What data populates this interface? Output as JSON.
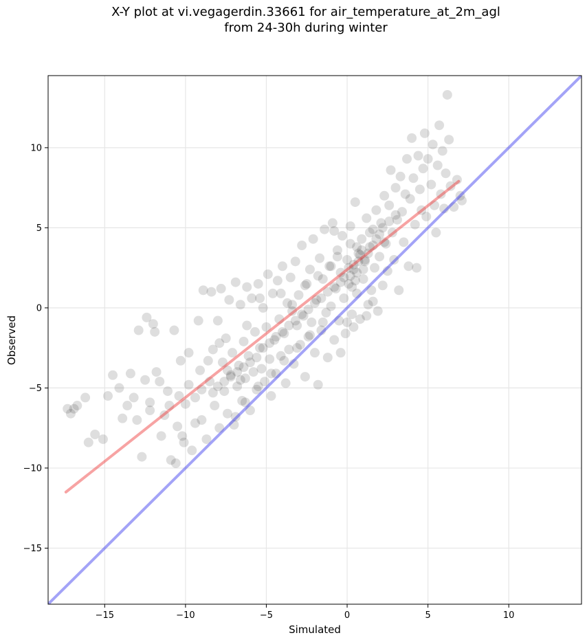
{
  "chart_data": {
    "type": "scatter",
    "title": "X-Y plot at vi.vegagerdin.33661 for air_temperature_at_2m_agl",
    "subtitle": "from 24-30h during winter",
    "xlabel": "Simulated",
    "ylabel": "Observed",
    "xlim": [
      -18.5,
      14.5
    ],
    "ylim": [
      -18.5,
      14.5
    ],
    "xticks": [
      -15,
      -10,
      -5,
      0,
      5,
      10
    ],
    "yticks": [
      -15,
      -10,
      -5,
      0,
      5,
      10
    ],
    "xtick_labels": [
      "−15",
      "−10",
      "−5",
      "0",
      "5",
      "10"
    ],
    "ytick_labels": [
      "−15",
      "−10",
      "−5",
      "0",
      "5",
      "10"
    ],
    "grid": true,
    "point_color": "#000000",
    "regression_line": {
      "x": [
        -17.4,
        6.9
      ],
      "y": [
        -11.5,
        7.9
      ],
      "color": "#ee3333"
    },
    "identity_line": {
      "x": [
        -18.5,
        14.5
      ],
      "y": [
        -18.5,
        14.5
      ],
      "color": "#3333ee"
    },
    "points": [
      [
        -17.3,
        -6.3
      ],
      [
        -17.1,
        -6.6
      ],
      [
        -16.9,
        -6.3
      ],
      [
        -16.7,
        -6.1
      ],
      [
        -16.2,
        -5.6
      ],
      [
        -16.0,
        -8.4
      ],
      [
        -15.6,
        -7.9
      ],
      [
        -15.1,
        -8.2
      ],
      [
        -14.8,
        -5.5
      ],
      [
        -14.5,
        -4.2
      ],
      [
        -14.1,
        -5.0
      ],
      [
        -13.9,
        -6.9
      ],
      [
        -13.6,
        -6.1
      ],
      [
        -13.4,
        -4.1
      ],
      [
        -13.2,
        -5.6
      ],
      [
        -13.0,
        -7.0
      ],
      [
        -12.9,
        -1.4
      ],
      [
        -12.7,
        -9.3
      ],
      [
        -12.5,
        -4.5
      ],
      [
        -12.4,
        -0.6
      ],
      [
        -12.2,
        -6.4
      ],
      [
        -12.0,
        -1.0
      ],
      [
        -11.9,
        -1.5
      ],
      [
        -11.8,
        -4.0
      ],
      [
        -11.5,
        -8.0
      ],
      [
        -11.3,
        -6.7
      ],
      [
        -11.1,
        -5.2
      ],
      [
        -10.9,
        -9.5
      ],
      [
        -10.7,
        -1.4
      ],
      [
        -10.6,
        -9.7
      ],
      [
        -10.5,
        -7.4
      ],
      [
        -10.3,
        -3.3
      ],
      [
        -10.1,
        -8.4
      ],
      [
        -10.0,
        -6.0
      ],
      [
        -9.8,
        -2.8
      ],
      [
        -9.6,
        -8.9
      ],
      [
        -9.4,
        -5.6
      ],
      [
        -9.2,
        -0.8
      ],
      [
        -9.1,
        -3.9
      ],
      [
        -9.0,
        -7.0
      ],
      [
        -8.9,
        1.1
      ],
      [
        -8.7,
        -8.2
      ],
      [
        -8.5,
        -4.6
      ],
      [
        -8.4,
        1.0
      ],
      [
        -8.3,
        -2.6
      ],
      [
        -8.2,
        -6.1
      ],
      [
        -8.0,
        -0.8
      ],
      [
        -7.9,
        -7.5
      ],
      [
        -7.8,
        1.2
      ],
      [
        -7.7,
        -3.4
      ],
      [
        -7.6,
        -5.2
      ],
      [
        -7.5,
        -1.9
      ],
      [
        -7.4,
        -6.6
      ],
      [
        -7.3,
        0.5
      ],
      [
        -7.2,
        -4.2
      ],
      [
        -7.1,
        -2.8
      ],
      [
        -7.0,
        -7.3
      ],
      [
        -6.9,
        1.6
      ],
      [
        -6.8,
        -4.9
      ],
      [
        -6.7,
        -3.6
      ],
      [
        -6.6,
        0.2
      ],
      [
        -6.5,
        -5.8
      ],
      [
        -6.4,
        -2.1
      ],
      [
        -6.3,
        -4.4
      ],
      [
        -6.2,
        1.3
      ],
      [
        -6.1,
        -3.0
      ],
      [
        -6.0,
        -6.4
      ],
      [
        -5.9,
        0.6
      ],
      [
        -5.8,
        -4.0
      ],
      [
        -5.7,
        -1.5
      ],
      [
        -5.6,
        -5.1
      ],
      [
        -5.5,
        1.5
      ],
      [
        -5.4,
        -2.5
      ],
      [
        -5.3,
        -3.8
      ],
      [
        -5.2,
        0.0
      ],
      [
        -5.1,
        -4.6
      ],
      [
        -5.0,
        -1.2
      ],
      [
        -4.9,
        2.1
      ],
      [
        -4.8,
        -3.2
      ],
      [
        -4.7,
        -5.5
      ],
      [
        -4.6,
        0.9
      ],
      [
        -4.5,
        -2.0
      ],
      [
        -4.4,
        -4.1
      ],
      [
        -4.3,
        1.7
      ],
      [
        -4.2,
        -0.7
      ],
      [
        -4.1,
        -3.0
      ],
      [
        -4.0,
        2.6
      ],
      [
        -3.9,
        -1.6
      ],
      [
        -3.8,
        -4.7
      ],
      [
        -3.7,
        0.3
      ],
      [
        -3.6,
        -2.6
      ],
      [
        -3.5,
        1.9
      ],
      [
        -3.4,
        -0.2
      ],
      [
        -3.3,
        -3.5
      ],
      [
        -3.2,
        2.9
      ],
      [
        -3.1,
        -1.1
      ],
      [
        -3.0,
        0.8
      ],
      [
        -2.9,
        -2.3
      ],
      [
        -2.8,
        3.9
      ],
      [
        -2.7,
        -0.5
      ],
      [
        -2.6,
        -4.3
      ],
      [
        -2.5,
        1.5
      ],
      [
        -2.4,
        -1.8
      ],
      [
        -2.3,
        2.4
      ],
      [
        -2.2,
        -0.9
      ],
      [
        -2.1,
        4.3
      ],
      [
        -2.0,
        -2.8
      ],
      [
        -1.9,
        0.5
      ],
      [
        -1.8,
        -4.8
      ],
      [
        -1.7,
        3.1
      ],
      [
        -1.6,
        -1.4
      ],
      [
        -1.5,
        1.8
      ],
      [
        -1.4,
        4.9
      ],
      [
        -1.3,
        -0.3
      ],
      [
        -1.2,
        -3.1
      ],
      [
        -1.1,
        2.6
      ],
      [
        -1.0,
        0.1
      ],
      [
        -0.9,
        5.3
      ],
      [
        -0.8,
        -2.0
      ],
      [
        -0.7,
        1.2
      ],
      [
        -0.6,
        3.6
      ],
      [
        -0.5,
        -0.8
      ],
      [
        -0.4,
        2.2
      ],
      [
        -0.3,
        4.5
      ],
      [
        -0.2,
        0.6
      ],
      [
        -0.1,
        -1.6
      ],
      [
        0.0,
        3.0
      ],
      [
        0.1,
        1.5
      ],
      [
        0.2,
        5.1
      ],
      [
        0.3,
        -0.4
      ],
      [
        0.4,
        2.4
      ],
      [
        0.5,
        6.6
      ],
      [
        0.6,
        0.9
      ],
      [
        0.7,
        3.4
      ],
      [
        0.8,
        -0.7
      ],
      [
        0.9,
        4.3
      ],
      [
        1.0,
        1.8
      ],
      [
        1.1,
        2.9
      ],
      [
        1.2,
        5.6
      ],
      [
        1.3,
        0.2
      ],
      [
        1.4,
        3.8
      ],
      [
        1.5,
        1.1
      ],
      [
        1.6,
        4.9
      ],
      [
        1.7,
        2.5
      ],
      [
        1.8,
        6.1
      ],
      [
        1.9,
        -0.2
      ],
      [
        2.0,
        3.2
      ],
      [
        2.1,
        5.3
      ],
      [
        2.2,
        1.4
      ],
      [
        2.3,
        7.0
      ],
      [
        2.4,
        4.0
      ],
      [
        2.5,
        2.3
      ],
      [
        2.6,
        6.4
      ],
      [
        2.7,
        8.6
      ],
      [
        2.8,
        4.7
      ],
      [
        2.9,
        3.0
      ],
      [
        3.0,
        7.5
      ],
      [
        3.1,
        5.5
      ],
      [
        3.2,
        1.1
      ],
      [
        3.3,
        8.2
      ],
      [
        3.4,
        6.0
      ],
      [
        3.5,
        4.1
      ],
      [
        3.6,
        7.1
      ],
      [
        3.7,
        9.3
      ],
      [
        3.8,
        2.6
      ],
      [
        3.9,
        6.8
      ],
      [
        4.0,
        10.6
      ],
      [
        4.1,
        8.1
      ],
      [
        4.2,
        5.2
      ],
      [
        4.3,
        2.5
      ],
      [
        4.4,
        9.5
      ],
      [
        4.5,
        7.4
      ],
      [
        4.6,
        6.1
      ],
      [
        4.7,
        8.7
      ],
      [
        4.8,
        10.9
      ],
      [
        4.9,
        5.7
      ],
      [
        5.0,
        9.3
      ],
      [
        5.2,
        7.7
      ],
      [
        5.3,
        10.2
      ],
      [
        5.4,
        6.4
      ],
      [
        5.5,
        4.7
      ],
      [
        5.6,
        8.9
      ],
      [
        5.7,
        11.4
      ],
      [
        5.8,
        7.1
      ],
      [
        5.9,
        9.8
      ],
      [
        6.0,
        6.2
      ],
      [
        6.1,
        8.4
      ],
      [
        6.2,
        13.3
      ],
      [
        6.3,
        10.5
      ],
      [
        6.4,
        7.6
      ],
      [
        6.6,
        6.3
      ],
      [
        6.8,
        8.0
      ],
      [
        7.0,
        7.0
      ],
      [
        7.1,
        6.7
      ],
      [
        0.2,
        2.0
      ],
      [
        0.4,
        2.7
      ],
      [
        0.6,
        2.2
      ],
      [
        0.8,
        3.3
      ],
      [
        1.0,
        2.4
      ],
      [
        0.3,
        1.3
      ],
      [
        0.5,
        1.7
      ],
      [
        0.7,
        2.9
      ],
      [
        0.9,
        3.6
      ],
      [
        1.1,
        3.0
      ],
      [
        -0.2,
        1.9
      ],
      [
        0.1,
        2.5
      ],
      [
        0.6,
        3.8
      ],
      [
        1.3,
        3.4
      ],
      [
        1.6,
        3.9
      ],
      [
        2.0,
        4.6
      ],
      [
        2.3,
        4.1
      ],
      [
        1.8,
        4.3
      ],
      [
        1.4,
        4.7
      ],
      [
        2.6,
        5.4
      ],
      [
        3.0,
        5.8
      ],
      [
        2.2,
        5.0
      ],
      [
        -7.2,
        -4.3
      ],
      [
        -6.8,
        -4.0
      ],
      [
        -6.4,
        -3.7
      ],
      [
        -7.6,
        -4.6
      ],
      [
        -8.0,
        -4.9
      ],
      [
        -6.0,
        -3.4
      ],
      [
        -5.6,
        -3.1
      ],
      [
        -7.4,
        -3.9
      ],
      [
        -6.6,
        -4.5
      ],
      [
        -8.3,
        -5.3
      ],
      [
        -5.2,
        -2.5
      ],
      [
        -4.8,
        -2.2
      ],
      [
        -4.4,
        -1.8
      ],
      [
        -4.0,
        -1.5
      ],
      [
        -3.6,
        -1.1
      ],
      [
        -3.2,
        -0.8
      ],
      [
        -2.8,
        -0.4
      ],
      [
        -2.4,
        -0.1
      ],
      [
        -2.0,
        0.3
      ],
      [
        -1.6,
        0.6
      ],
      [
        -1.2,
        1.0
      ],
      [
        -0.8,
        1.3
      ],
      [
        -0.4,
        1.6
      ],
      [
        -9.0,
        -5.1
      ],
      [
        -9.8,
        -4.8
      ],
      [
        -10.4,
        -5.5
      ],
      [
        -11.0,
        -6.1
      ],
      [
        -11.6,
        -4.6
      ],
      [
        -12.2,
        -5.9
      ],
      [
        -8.6,
        -3.3
      ],
      [
        -7.9,
        -2.2
      ],
      [
        -6.2,
        -1.1
      ],
      [
        -5.4,
        0.6
      ],
      [
        -4.1,
        0.9
      ],
      [
        -3.4,
        0.2
      ],
      [
        -2.6,
        1.4
      ],
      [
        -1.8,
        2.0
      ],
      [
        -1.0,
        2.6
      ],
      [
        -0.6,
        3.2
      ],
      [
        0.2,
        4.0
      ],
      [
        -0.8,
        4.8
      ],
      [
        0.0,
        -0.9
      ],
      [
        -0.4,
        -2.8
      ],
      [
        0.4,
        -1.2
      ],
      [
        1.2,
        -0.5
      ],
      [
        1.6,
        0.4
      ],
      [
        -6.9,
        -6.8
      ],
      [
        -6.3,
        -5.9
      ],
      [
        -5.5,
        -4.9
      ],
      [
        -4.7,
        -4.1
      ],
      [
        -3.9,
        -3.3
      ],
      [
        -3.1,
        -2.5
      ],
      [
        -2.3,
        -1.7
      ],
      [
        -1.5,
        -0.9
      ],
      [
        -9.4,
        -7.2
      ],
      [
        -10.2,
        -8.0
      ]
    ]
  }
}
